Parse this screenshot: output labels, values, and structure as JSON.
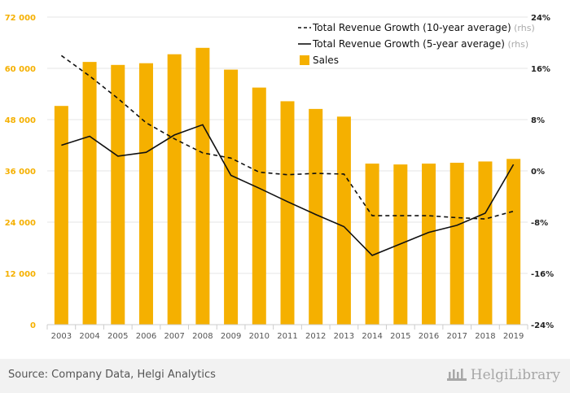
{
  "chart_data": {
    "type": "bar",
    "categories": [
      "2003",
      "2004",
      "2005",
      "2006",
      "2007",
      "2008",
      "2009",
      "2010",
      "2011",
      "2012",
      "2013",
      "2014",
      "2015",
      "2016",
      "2017",
      "2018",
      "2019"
    ],
    "series": [
      {
        "name": "Sales",
        "type": "bar",
        "axis": "left",
        "color": "#f5b000",
        "values": [
          51200,
          61500,
          60800,
          61200,
          63300,
          64800,
          59700,
          55500,
          52300,
          50500,
          48700,
          37700,
          37500,
          37700,
          37900,
          38200,
          38800
        ]
      },
      {
        "name": "Total Revenue Growth (10-year average)",
        "rhs_tag": "(rhs)",
        "type": "line",
        "style": "dashed",
        "axis": "right",
        "color": "#111111",
        "values": [
          18.0,
          14.8,
          11.3,
          7.5,
          5.0,
          2.8,
          2.0,
          -0.2,
          -0.6,
          -0.4,
          -0.5,
          -7.0,
          -7.0,
          -7.0,
          -7.3,
          -7.5,
          -6.3
        ]
      },
      {
        "name": "Total Revenue Growth (5-year average)",
        "rhs_tag": "(rhs)",
        "type": "line",
        "style": "solid",
        "axis": "right",
        "color": "#111111",
        "values": [
          4.0,
          5.4,
          2.3,
          2.9,
          5.6,
          7.2,
          -0.7,
          -2.7,
          -4.8,
          -6.8,
          -8.7,
          -13.2,
          -11.4,
          -9.6,
          -8.5,
          -6.6,
          1.0
        ]
      }
    ],
    "y_left": {
      "ylim": [
        0,
        72000
      ],
      "ticks": [
        "0",
        "12 000",
        "24 000",
        "36 000",
        "48 000",
        "60 000",
        "72 000"
      ],
      "tick_values": [
        0,
        12000,
        24000,
        36000,
        48000,
        60000,
        72000
      ]
    },
    "y_right": {
      "ylim": [
        -24,
        24
      ],
      "ticks": [
        "-24%",
        "-16%",
        "-8%",
        "0%",
        "8%",
        "16%",
        "24%"
      ],
      "tick_values": [
        -24,
        -16,
        -8,
        0,
        8,
        16,
        24
      ]
    },
    "legend_position": "top-right",
    "grid": true,
    "colors": {
      "bar": "#f5b000",
      "left_axis_text": "#f5b000",
      "right_axis_text": "#222222",
      "grid": "#e6e6e6",
      "line": "#111111"
    }
  },
  "footer": {
    "source": "Source: Company Data, Helgi Analytics",
    "logo_text": "HelgiLibrary",
    "logo_icon": "helgi-building-icon"
  }
}
